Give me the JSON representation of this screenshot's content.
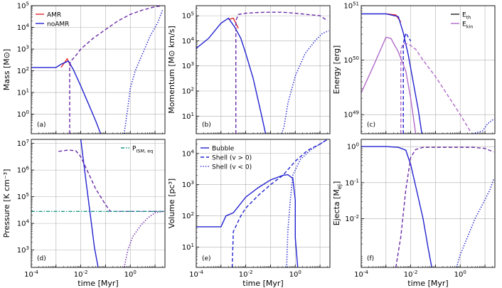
{
  "colors": {
    "amr": "#e8262a",
    "noamr": "#2222d0",
    "overlap": "#6a2aa8",
    "ekin": "#b06ac8",
    "eth": "#222222",
    "pism": "#1a9a8a"
  },
  "x_axis": {
    "label": "time [Myr]",
    "xlim_log10": [
      -4,
      1.4
    ],
    "ticks": [
      "10^-4",
      "10^-2",
      "10^0"
    ]
  },
  "chart_data": [
    {
      "type": "line",
      "panel": "(a)",
      "ylabel": "Mass [M⊙]",
      "ylim_log10": [
        -0.9,
        5
      ],
      "yticks": [
        "10^0",
        "10^1",
        "10^2",
        "10^3",
        "10^4",
        "10^5"
      ],
      "legend": {
        "position": "top-left",
        "entries": [
          {
            "label": "AMR",
            "color_key": "amr"
          },
          {
            "label": "noAMR",
            "color_key": "noamr"
          }
        ]
      },
      "series": [
        {
          "name": "Bubble (AMR)",
          "style": "solid",
          "color_key": "amr",
          "log10_t": [
            -2.8,
            -2.55,
            -2.4
          ],
          "log10_y": [
            2.15,
            2.55,
            2.2
          ]
        },
        {
          "name": "Bubble (noAMR)",
          "style": "solid",
          "color_key": "noamr",
          "log10_t": [
            -4,
            -3,
            -2.8,
            -2.5,
            -2.3,
            -2,
            -1.7,
            -1.4,
            -1.2
          ],
          "log10_y": [
            2.15,
            2.15,
            2.3,
            2.45,
            2.05,
            1.3,
            0.5,
            -0.3,
            -0.9
          ]
        },
        {
          "name": "Shell v>0",
          "style": "dashed",
          "color_key": "overlap",
          "log10_t": [
            -2.45,
            -2.45,
            -2.4,
            -2.2,
            -2,
            -1.5,
            -1,
            -0.5,
            0,
            0.5,
            1,
            1.3
          ],
          "log10_y": [
            -0.9,
            2.3,
            2.45,
            2.7,
            3,
            3.5,
            3.9,
            4.3,
            4.6,
            4.8,
            4.95,
            5
          ]
        },
        {
          "name": "Shell v<0",
          "style": "dotted",
          "color_key": "noamr",
          "log10_t": [
            -0.25,
            -0.1,
            0,
            0.2,
            0.5,
            0.8,
            1.1,
            1.3
          ],
          "log10_y": [
            -0.9,
            0.3,
            1.2,
            2,
            2.8,
            3.6,
            4.2,
            4.8
          ]
        }
      ]
    },
    {
      "type": "line",
      "panel": "(b)",
      "ylabel": "Momentum [M⊙ km/s]",
      "ylim_log10": [
        0.3,
        5.4
      ],
      "yticks": [
        "10^1",
        "10^2",
        "10^3",
        "10^4",
        "10^5"
      ],
      "series": [
        {
          "name": "Bubble (AMR)",
          "style": "solid",
          "color_key": "amr",
          "log10_t": [
            -2.7,
            -2.5,
            -2.3
          ],
          "log10_y": [
            4.85,
            4.9,
            4.5
          ]
        },
        {
          "name": "Bubble (noAMR)",
          "style": "solid",
          "color_key": "noamr",
          "log10_t": [
            -4,
            -3.5,
            -3,
            -2.7,
            -2.45,
            -2.2,
            -2,
            -1.7,
            -1.4,
            -1.2
          ],
          "log10_y": [
            3.7,
            4.1,
            4.7,
            4.9,
            4.55,
            4.1,
            3.5,
            2.5,
            1.2,
            0.3
          ]
        },
        {
          "name": "Shell v>0",
          "style": "dashed",
          "color_key": "overlap",
          "log10_t": [
            -2.4,
            -2.4,
            -2.3,
            -2,
            -1.5,
            -1,
            -0.5,
            0,
            0.5,
            1,
            1.3
          ],
          "log10_y": [
            0.3,
            4.8,
            5.05,
            5.1,
            5.13,
            5.14,
            5.14,
            5.1,
            5.05,
            5,
            4.8
          ]
        },
        {
          "name": "Shell v<0",
          "style": "dotted",
          "color_key": "noamr",
          "log10_t": [
            -0.55,
            -0.45,
            -0.3,
            0,
            0.4,
            0.8,
            1.1,
            1.35
          ],
          "log10_y": [
            0.3,
            0.6,
            1.5,
            2.6,
            3.5,
            4,
            4.3,
            4.4
          ]
        }
      ]
    },
    {
      "type": "line",
      "panel": "(c)",
      "ylabel": "Energy [erg]",
      "ylim_log10": [
        48.65,
        51
      ],
      "yticks": [
        "10^49",
        "10^50",
        "10^51"
      ],
      "legend": {
        "position": "top-right",
        "entries": [
          {
            "label": "E_th",
            "color_key": "eth"
          },
          {
            "label": "E_kin",
            "color_key": "ekin"
          }
        ]
      },
      "series": [
        {
          "name": "E_th (AMR)",
          "style": "solid",
          "color_key": "amr",
          "log10_t": [
            -3,
            -2.6,
            -2.4
          ],
          "log10_y": [
            50.85,
            50.83,
            50.7
          ]
        },
        {
          "name": "E_th bubble",
          "style": "solid",
          "color_key": "noamr",
          "log10_t": [
            -4,
            -3,
            -2.5,
            -2.3,
            -2.1,
            -1.9,
            -1.7,
            -1.55
          ],
          "log10_y": [
            50.85,
            50.85,
            50.8,
            50.5,
            50.1,
            49.6,
            49.1,
            48.65
          ]
        },
        {
          "name": "E_th shell v>0",
          "style": "dashed",
          "color_key": "noamr",
          "log10_t": [
            -2.3,
            -2.3,
            -2.2,
            -2
          ],
          "log10_y": [
            48.65,
            50.3,
            50.5,
            50.35
          ]
        },
        {
          "name": "E_th shell v<0",
          "style": "dotted",
          "color_key": "noamr",
          "log10_t": [
            0.5,
            0.9,
            1.1,
            1.3,
            1.4
          ],
          "log10_y": [
            48.65,
            48.7,
            48.83,
            48.9,
            48.92
          ]
        },
        {
          "name": "E_kin bubble",
          "style": "solid",
          "color_key": "ekin",
          "log10_t": [
            -4,
            -3.5,
            -3,
            -2.8,
            -2.5,
            -2.2,
            -2,
            -1.8
          ],
          "log10_y": [
            49.4,
            49.9,
            50.42,
            50.4,
            50.15,
            49.8,
            49.3,
            48.65
          ]
        },
        {
          "name": "E_kin shell",
          "style": "dashed",
          "color_key": "ekin",
          "log10_t": [
            -2.4,
            -2.4,
            -2.3,
            -2.1,
            -1.8,
            -1.5,
            -1,
            -0.5,
            0,
            0.4
          ],
          "log10_y": [
            48.65,
            50.2,
            50.3,
            50.3,
            50.2,
            50,
            49.7,
            49.35,
            49,
            48.7
          ]
        }
      ]
    },
    {
      "type": "line",
      "panel": "(d)",
      "ylabel": "Pressure [K cm⁻³]",
      "ylim_log10": [
        2.35,
        7.15
      ],
      "yticks": [
        "10^3",
        "10^4",
        "10^5",
        "10^6",
        "10^7"
      ],
      "legend": {
        "position": "top-right",
        "entries": [
          {
            "label": "P_ISM, eq",
            "color_key": "pism"
          }
        ]
      },
      "series": [
        {
          "name": "Bubble",
          "style": "solid",
          "color_key": "noamr",
          "log10_t": [
            -2,
            -1.9,
            -1.75,
            -1.6,
            -1.45,
            -1.3
          ],
          "log10_y": [
            7.15,
            6.4,
            5.3,
            4.2,
            3.1,
            2.35
          ]
        },
        {
          "name": "Shell v>0",
          "style": "dashed",
          "color_key": "overlap",
          "log10_t": [
            -2.9,
            -2.5,
            -2.2,
            -2,
            -1.8,
            -1.6,
            -1.4,
            -1.2,
            -1,
            -0.8,
            -0.5,
            0,
            0.5,
            1,
            1.35
          ],
          "log10_y": [
            6.7,
            6.75,
            6.72,
            6.5,
            6.1,
            5.7,
            5.3,
            5,
            4.7,
            4.45,
            4.45,
            4.45,
            4.45,
            4.45,
            4.45
          ]
        },
        {
          "name": "Shell v<0",
          "style": "dotted",
          "color_key": "overlap",
          "log10_t": [
            -0.25,
            -0.1,
            0.1,
            0.4,
            0.7,
            1,
            1.35
          ],
          "log10_y": [
            2.35,
            3,
            3.5,
            3.9,
            4.2,
            4.4,
            4.45
          ]
        },
        {
          "name": "P_ISM, eq",
          "style": "dashdot",
          "color_key": "pism",
          "log10_t": [
            -4,
            1.4
          ],
          "log10_y": [
            4.45,
            4.45
          ]
        }
      ]
    },
    {
      "type": "line",
      "panel": "(e)",
      "ylabel": "Volume [pc³]",
      "ylim_log10": [
        0.35,
        4.45
      ],
      "yticks": [
        "10^1",
        "10^2",
        "10^3",
        "10^4"
      ],
      "legend": {
        "position": "top-left",
        "entries": [
          {
            "label": "Bubble",
            "style": "solid"
          },
          {
            "label": "Shell (v > 0)",
            "style": "dashed"
          },
          {
            "label": "Shell (v < 0)",
            "style": "dotted"
          }
        ]
      },
      "series": [
        {
          "name": "Bubble",
          "style": "solid",
          "color_key": "noamr",
          "log10_t": [
            -4,
            -3.5,
            -3,
            -2.8,
            -2.5,
            -2,
            -1.5,
            -1,
            -0.5,
            -0.3,
            -0.1,
            0,
            0,
            0.1
          ],
          "log10_y": [
            1.65,
            1.65,
            1.65,
            2,
            2.1,
            2.6,
            2.9,
            3.15,
            3.3,
            3.32,
            3.2,
            2.5,
            1.3,
            0.35
          ]
        },
        {
          "name": "Shell v>0",
          "style": "dashed",
          "color_key": "noamr",
          "log10_t": [
            -2.55,
            -2.5,
            -2.2,
            -2,
            -1.5,
            -1,
            -0.5,
            0,
            0.5,
            1,
            1.3
          ],
          "log10_y": [
            0.35,
            1.5,
            2,
            2.25,
            2.65,
            3,
            3.3,
            3.75,
            4.1,
            4.3,
            4.45
          ]
        },
        {
          "name": "Shell v<0",
          "style": "dotted",
          "color_key": "noamr",
          "log10_t": [
            -0.35,
            -0.3,
            -0.2,
            -0.1,
            0.2,
            0.6,
            1,
            1.3
          ],
          "log10_y": [
            0.35,
            1.5,
            2.5,
            3.3,
            3.8,
            4.1,
            4.3,
            4.45
          ]
        }
      ]
    },
    {
      "type": "line",
      "panel": "(f)",
      "ylabel": "Ejecta [M_ej]",
      "ylim_log10": [
        -3.35,
        0.2
      ],
      "yticks": [
        "10^-2",
        "10^-1",
        "10^0"
      ],
      "series": [
        {
          "name": "Bubble",
          "style": "solid",
          "color_key": "noamr",
          "log10_t": [
            -4,
            -3,
            -2.5,
            -2.2,
            -2,
            -1.8,
            -1.5,
            -1.3,
            -1.15
          ],
          "log10_y": [
            0,
            0,
            -0.02,
            -0.1,
            -0.5,
            -1.1,
            -2,
            -2.8,
            -3.35
          ]
        },
        {
          "name": "Shell v>0",
          "style": "dashed",
          "color_key": "overlap",
          "log10_t": [
            -2.6,
            -2.4,
            -2.2,
            -2,
            -1.8,
            -1.5,
            -1,
            -0.5,
            0,
            0.5,
            1,
            1.35
          ],
          "log10_y": [
            -3.35,
            -2.5,
            -1.2,
            -0.3,
            -0.08,
            -0.02,
            -0.02,
            -0.02,
            -0.02,
            -0.02,
            -0.05,
            -0.15
          ]
        },
        {
          "name": "Shell v<0",
          "style": "dotted",
          "color_key": "noamr",
          "log10_t": [
            -0.15,
            0,
            0.3,
            0.6,
            0.9,
            1.2,
            1.35
          ],
          "log10_y": [
            -3.35,
            -3,
            -2.5,
            -2,
            -1.6,
            -1.2,
            -0.9
          ]
        }
      ]
    }
  ]
}
